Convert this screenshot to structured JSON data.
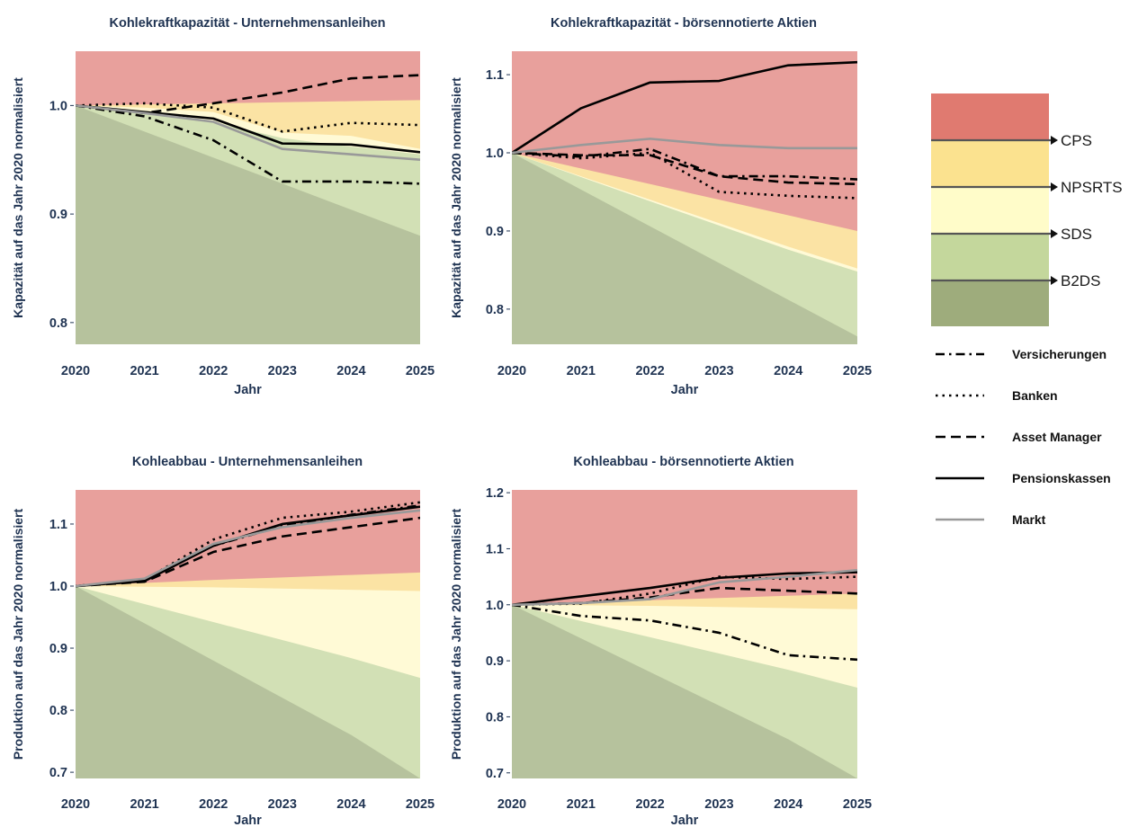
{
  "colors": {
    "CPS": "#e8a09c",
    "NPSRTS": "#fbe3a4",
    "SDS": "#fffad6",
    "B2DS_light": "#d2e0b5",
    "B2DS_dark": "#b6c29d",
    "text": "#1f3352",
    "legend_CPS": "#e07a70",
    "legend_NPSRTS": "#fbe28f",
    "legend_SDS": "#fffcc9",
    "legend_B2DS_light": "#c4d79c",
    "legend_B2DS_dark": "#9eac7c"
  },
  "x_axis_label": "Jahr",
  "chart_data": [
    {
      "type": "line",
      "title": "Kohlekraftkapazität - Unternehmensanleihen",
      "xlabel": "Jahr",
      "ylabel": "Kapazität auf das Jahr 2020 normalisiert",
      "x": [
        2020,
        2021,
        2022,
        2023,
        2024,
        2025
      ],
      "ylim": [
        0.78,
        1.05
      ],
      "yticks": [
        "0.8",
        "0.9",
        "1.0"
      ],
      "ytick_values": [
        0.8,
        0.9,
        1.0
      ],
      "xticks": [
        "2020",
        "2021",
        "2022",
        "2023",
        "2024",
        "2025"
      ],
      "bands": {
        "CPS": [
          1.0,
          1.001,
          1.002,
          1.003,
          1.004,
          1.005
        ],
        "NPSRTS": [
          1.0,
          0.998,
          0.994,
          0.975,
          0.972,
          0.96
        ],
        "SDS": [
          1.0,
          0.995,
          0.985,
          0.97,
          0.962,
          0.955
        ],
        "B2DS": [
          1.0,
          0.985,
          0.965,
          0.95,
          0.94,
          0.94
        ],
        "floor": [
          1.0,
          0.976,
          0.952,
          0.928,
          0.904,
          0.88
        ]
      },
      "series": [
        {
          "name": "Versicherungen",
          "style": "dashdot",
          "values": [
            1.0,
            0.99,
            0.968,
            0.93,
            0.93,
            0.928
          ]
        },
        {
          "name": "Banken",
          "style": "dotted",
          "values": [
            1.0,
            1.002,
            0.998,
            0.976,
            0.984,
            0.982
          ]
        },
        {
          "name": "Asset Manager",
          "style": "dashed",
          "values": [
            1.0,
            0.993,
            1.002,
            1.012,
            1.025,
            1.028
          ]
        },
        {
          "name": "Pensionskassen",
          "style": "solid",
          "values": [
            1.0,
            0.994,
            0.988,
            0.965,
            0.964,
            0.957
          ]
        },
        {
          "name": "Markt",
          "style": "grey",
          "values": [
            1.0,
            0.993,
            0.985,
            0.96,
            0.955,
            0.95
          ]
        }
      ]
    },
    {
      "type": "line",
      "title": "Kohlekraftkapazität - börsennotierte Aktien",
      "xlabel": "Jahr",
      "ylabel": "Kapazität auf das Jahr 2020 normalisiert",
      "x": [
        2020,
        2021,
        2022,
        2023,
        2024,
        2025
      ],
      "ylim": [
        0.755,
        1.13
      ],
      "yticks": [
        "0.8",
        "0.9",
        "1.0",
        "1.1"
      ],
      "ytick_values": [
        0.8,
        0.9,
        1.0,
        1.1
      ],
      "xticks": [
        "2020",
        "2021",
        "2022",
        "2023",
        "2024",
        "2025"
      ],
      "bands": {
        "CPS": [
          1.0,
          0.98,
          0.96,
          0.94,
          0.92,
          0.9
        ],
        "NPSRTS": [
          1.0,
          0.97,
          0.94,
          0.91,
          0.88,
          0.852
        ],
        "SDS": [
          1.0,
          0.969,
          0.938,
          0.907,
          0.876,
          0.848
        ],
        "B2DS": [
          1.0,
          0.967,
          0.934,
          0.901,
          0.868,
          0.835
        ],
        "floor": [
          1.0,
          0.953,
          0.906,
          0.859,
          0.812,
          0.765
        ]
      },
      "series": [
        {
          "name": "Versicherungen",
          "style": "dashdot",
          "values": [
            1.0,
            0.995,
            1.005,
            0.97,
            0.97,
            0.966
          ]
        },
        {
          "name": "Banken",
          "style": "dotted",
          "values": [
            1.0,
            0.993,
            1.0,
            0.95,
            0.945,
            0.942
          ]
        },
        {
          "name": "Asset Manager",
          "style": "dashed",
          "values": [
            1.0,
            0.997,
            0.997,
            0.97,
            0.962,
            0.96
          ]
        },
        {
          "name": "Pensionskassen",
          "style": "solid",
          "values": [
            1.0,
            1.057,
            1.09,
            1.092,
            1.112,
            1.116
          ]
        },
        {
          "name": "Markt",
          "style": "grey",
          "values": [
            1.0,
            1.01,
            1.018,
            1.01,
            1.006,
            1.006
          ]
        }
      ]
    },
    {
      "type": "line",
      "title": "Kohleabbau - Unternehmensanleihen",
      "xlabel": "Jahr",
      "ylabel": "Produktion auf das Jahr 2020 normalisiert",
      "x": [
        2020,
        2021,
        2022,
        2023,
        2024,
        2025
      ],
      "ylim": [
        0.69,
        1.155
      ],
      "yticks": [
        "0.7",
        "0.8",
        "0.9",
        "1.0",
        "1.1"
      ],
      "ytick_values": [
        0.7,
        0.8,
        0.9,
        1.0,
        1.1
      ],
      "xticks": [
        "2020",
        "2021",
        "2022",
        "2023",
        "2024",
        "2025"
      ],
      "bands": {
        "CPS": [
          1.0,
          1.005,
          1.01,
          1.014,
          1.018,
          1.022
        ],
        "NPSRTS": [
          1.0,
          0.999,
          0.998,
          0.996,
          0.994,
          0.992
        ],
        "SDS": [
          1.0,
          0.971,
          0.942,
          0.913,
          0.884,
          0.852
        ],
        "B2DS": [
          1.0,
          0.971,
          0.942,
          0.913,
          0.884,
          0.852
        ],
        "floor": [
          1.0,
          0.94,
          0.88,
          0.82,
          0.76,
          0.69
        ]
      },
      "series": [
        {
          "name": "Versicherungen",
          "style": "dashdot",
          "values": [
            1.0,
            1.01,
            1.065,
            1.097,
            1.115,
            1.13
          ]
        },
        {
          "name": "Banken",
          "style": "dotted",
          "values": [
            1.0,
            1.01,
            1.075,
            1.11,
            1.12,
            1.135
          ]
        },
        {
          "name": "Asset Manager",
          "style": "dashed",
          "values": [
            1.0,
            1.007,
            1.055,
            1.08,
            1.095,
            1.11
          ]
        },
        {
          "name": "Pensionskassen",
          "style": "solid",
          "values": [
            1.0,
            1.008,
            1.065,
            1.1,
            1.114,
            1.128
          ]
        },
        {
          "name": "Markt",
          "style": "grey",
          "values": [
            1.0,
            1.012,
            1.068,
            1.095,
            1.11,
            1.122
          ]
        }
      ]
    },
    {
      "type": "line",
      "title": "Kohleabbau - börsennotierte Aktien",
      "xlabel": "Jahr",
      "ylabel": "Produktion auf das Jahr 2020 normalisiert",
      "x": [
        2020,
        2021,
        2022,
        2023,
        2024,
        2025
      ],
      "ylim": [
        0.69,
        1.205
      ],
      "yticks": [
        "0.7",
        "0.8",
        "0.9",
        "1.0",
        "1.1",
        "1.2"
      ],
      "ytick_values": [
        0.7,
        0.8,
        0.9,
        1.0,
        1.1,
        1.2
      ],
      "xticks": [
        "2020",
        "2021",
        "2022",
        "2023",
        "2024",
        "2025"
      ],
      "bands": {
        "CPS": [
          1.0,
          1.004,
          1.008,
          1.012,
          1.016,
          1.02
        ],
        "NPSRTS": [
          1.0,
          0.999,
          0.998,
          0.996,
          0.994,
          0.992
        ],
        "SDS": [
          1.0,
          0.971,
          0.942,
          0.913,
          0.884,
          0.852
        ],
        "B2DS": [
          1.0,
          0.971,
          0.942,
          0.913,
          0.884,
          0.852
        ],
        "floor": [
          1.0,
          0.94,
          0.88,
          0.82,
          0.76,
          0.69
        ]
      },
      "series": [
        {
          "name": "Versicherungen",
          "style": "dashdot",
          "values": [
            1.0,
            0.98,
            0.972,
            0.95,
            0.91,
            0.902
          ]
        },
        {
          "name": "Banken",
          "style": "dotted",
          "values": [
            1.0,
            1.002,
            1.02,
            1.05,
            1.046,
            1.05
          ]
        },
        {
          "name": "Asset Manager",
          "style": "dashed",
          "values": [
            1.0,
            1.003,
            1.013,
            1.03,
            1.025,
            1.02
          ]
        },
        {
          "name": "Pensionskassen",
          "style": "solid",
          "values": [
            1.0,
            1.015,
            1.03,
            1.048,
            1.056,
            1.058
          ]
        },
        {
          "name": "Markt",
          "style": "grey",
          "values": [
            1.0,
            1.003,
            1.01,
            1.04,
            1.05,
            1.062
          ]
        }
      ]
    }
  ],
  "legend": {
    "scenarios": [
      "CPS",
      "NPSRTS",
      "SDS",
      "B2DS"
    ],
    "series": [
      {
        "label": "Versicherungen",
        "style": "dashdot"
      },
      {
        "label": "Banken",
        "style": "dotted"
      },
      {
        "label": "Asset Manager",
        "style": "dashed"
      },
      {
        "label": "Pensionskassen",
        "style": "solid"
      },
      {
        "label": "Markt",
        "style": "grey"
      }
    ]
  }
}
